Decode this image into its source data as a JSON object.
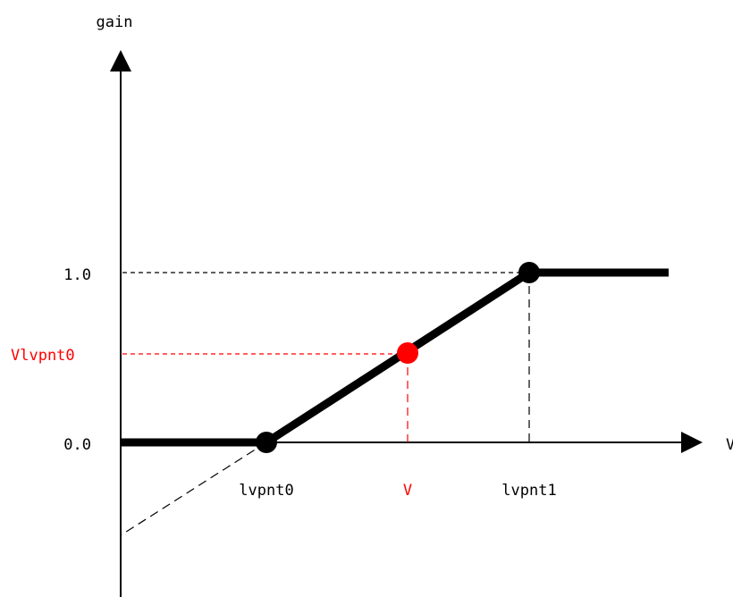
{
  "labels": {
    "y_axis": "gain",
    "x_axis": "V",
    "y_tick_1": "1.0",
    "y_tick_0": "0.0",
    "y_marker": "Vlvpnt0",
    "x_lvpnt0": "lvpnt0",
    "x_v": "V",
    "x_lvpnt1": "lvpnt1"
  },
  "colors": {
    "ink": "#000000",
    "highlight": "#ff0000",
    "background": "#ffffff"
  }
}
